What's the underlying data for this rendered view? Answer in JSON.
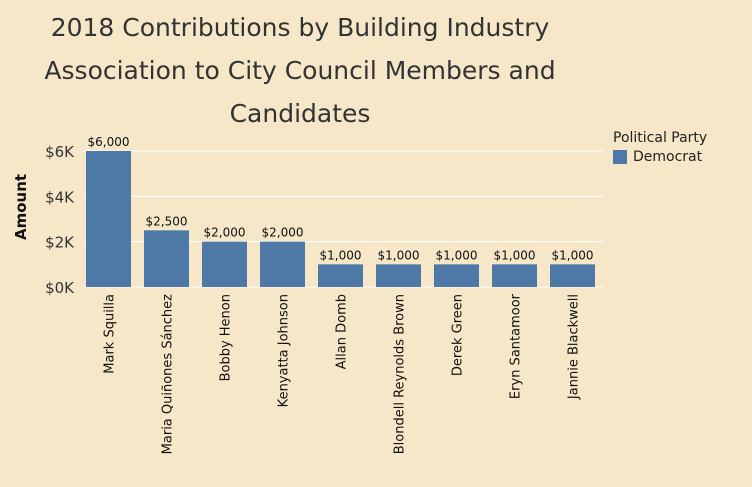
{
  "title_lines": [
    "2018 Contributions by Building Industry",
    "Association to City Council Members and",
    "Candidates"
  ],
  "legend": {
    "title": "Political Party",
    "items": [
      {
        "label": "Democrat",
        "color": "#4e79a7"
      }
    ]
  },
  "colors": {
    "background": "#f5e7c8",
    "bar": "#4e79a7",
    "gridline": "#ffffff"
  },
  "chart_data": {
    "type": "bar",
    "title": "2018 Contributions by Building Industry Association to City Council Members and Candidates",
    "ylabel": "Amount",
    "xlabel": "",
    "categories": [
      "Mark Squilla",
      "Maria Quiñones Sánchez",
      "Bobby Henon",
      "Kenyatta Johnson",
      "Allan Domb",
      "Blondell Reynolds Brown",
      "Derek Green",
      "Eryn Santamoor",
      "Jannie Blackwell"
    ],
    "series": [
      {
        "name": "Democrat",
        "values": [
          6000,
          2500,
          2000,
          2000,
          1000,
          1000,
          1000,
          1000,
          1000
        ],
        "labels": [
          "$6,000",
          "$2,500",
          "$2,000",
          "$2,000",
          "$1,000",
          "$1,000",
          "$1,000",
          "$1,000",
          "$1,000"
        ]
      }
    ],
    "yticks": [
      0,
      2000,
      4000,
      6000
    ],
    "ytick_labels": [
      "$0K",
      "$2K",
      "$4K",
      "$6K"
    ],
    "ylim": [
      0,
      6500
    ],
    "grid": true,
    "legend_position": "top-right"
  }
}
